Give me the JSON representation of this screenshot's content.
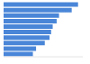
{
  "chart_data": {
    "type": "bar",
    "orientation": "horizontal",
    "categories": [
      null,
      null,
      null,
      null,
      null,
      null,
      null,
      null,
      null,
      null
    ],
    "values": [
      94,
      86,
      70,
      67,
      62,
      60,
      58,
      52,
      41,
      37
    ],
    "color": "#4a86d8",
    "xlim": [
      0,
      100
    ],
    "xticks": [
      0,
      100
    ],
    "grid": false,
    "tick_labels": false,
    "data_labels": false
  }
}
